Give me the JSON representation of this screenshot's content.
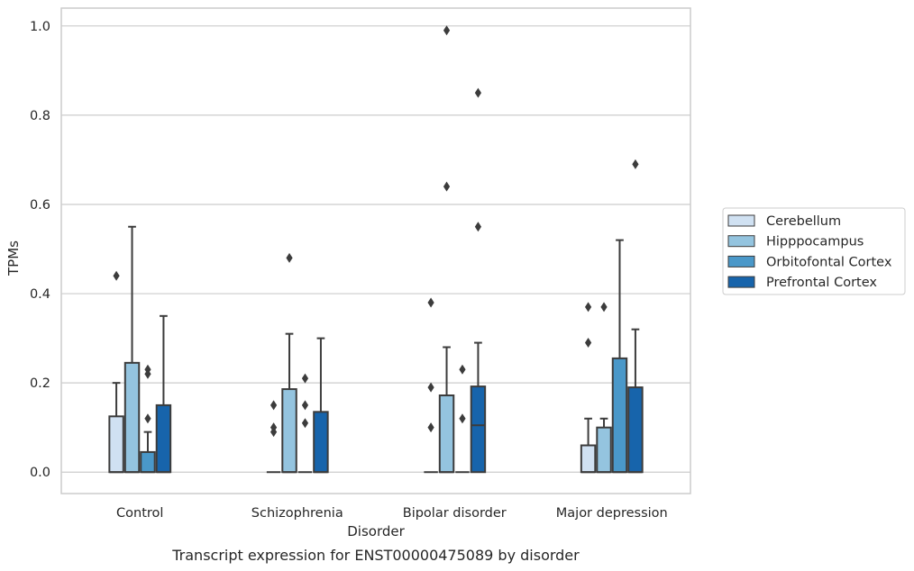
{
  "chart_data": {
    "type": "box",
    "xlabel": "Disorder",
    "ylabel": "TPMs",
    "caption": "Transcript expression for ENST00000475089 by disorder",
    "ylim": [
      -0.048,
      1.04
    ],
    "yticks": [
      "0.0",
      "0.2",
      "0.4",
      "0.6",
      "0.8",
      "1.0"
    ],
    "ytick_values": [
      0.0,
      0.2,
      0.4,
      0.6,
      0.8,
      1.0
    ],
    "grid": "horizontal",
    "legend_position": "right",
    "categories": [
      "Control",
      "Schizophrenia",
      "Bipolar disorder",
      "Major depression"
    ],
    "series": [
      {
        "name": "Cerebellum",
        "color": "#d0e1f2",
        "boxes": [
          {
            "q1": 0.0,
            "median": 0.0,
            "q3": 0.125,
            "whisker_low": 0.0,
            "whisker_high": 0.2,
            "outliers": [
              0.44
            ]
          },
          {
            "q1": 0.0,
            "median": 0.0,
            "q3": 0.0,
            "whisker_low": 0.0,
            "whisker_high": 0.0,
            "outliers": [
              0.15,
              0.1,
              0.09
            ]
          },
          {
            "q1": 0.0,
            "median": 0.0,
            "q3": 0.0,
            "whisker_low": 0.0,
            "whisker_high": 0.0,
            "outliers": [
              0.38,
              0.19,
              0.1
            ]
          },
          {
            "q1": 0.0,
            "median": 0.0,
            "q3": 0.06,
            "whisker_low": 0.0,
            "whisker_high": 0.12,
            "outliers": [
              0.37,
              0.29
            ]
          }
        ]
      },
      {
        "name": "Hipppocampus",
        "color": "#94c4df",
        "boxes": [
          {
            "q1": 0.0,
            "median": 0.0,
            "q3": 0.245,
            "whisker_low": 0.0,
            "whisker_high": 0.55,
            "outliers": []
          },
          {
            "q1": 0.0,
            "median": 0.0,
            "q3": 0.186,
            "whisker_low": 0.0,
            "whisker_high": 0.31,
            "outliers": [
              0.48
            ]
          },
          {
            "q1": 0.0,
            "median": 0.0,
            "q3": 0.172,
            "whisker_low": 0.0,
            "whisker_high": 0.28,
            "outliers": [
              0.99,
              0.64
            ]
          },
          {
            "q1": 0.0,
            "median": 0.0,
            "q3": 0.1,
            "whisker_low": 0.0,
            "whisker_high": 0.12,
            "outliers": [
              0.37
            ]
          }
        ]
      },
      {
        "name": "Orbitofontal Cortex",
        "color": "#4a98c9",
        "boxes": [
          {
            "q1": 0.0,
            "median": 0.0,
            "q3": 0.045,
            "whisker_low": 0.0,
            "whisker_high": 0.09,
            "outliers": [
              0.23,
              0.22,
              0.12
            ]
          },
          {
            "q1": 0.0,
            "median": 0.0,
            "q3": 0.0,
            "whisker_low": 0.0,
            "whisker_high": 0.0,
            "outliers": [
              0.21,
              0.15,
              0.11
            ]
          },
          {
            "q1": 0.0,
            "median": 0.0,
            "q3": 0.0,
            "whisker_low": 0.0,
            "whisker_high": 0.0,
            "outliers": [
              0.23,
              0.12
            ]
          },
          {
            "q1": 0.0,
            "median": 0.0,
            "q3": 0.255,
            "whisker_low": 0.0,
            "whisker_high": 0.52,
            "outliers": []
          }
        ]
      },
      {
        "name": "Prefrontal Cortex",
        "color": "#1764ab",
        "boxes": [
          {
            "q1": 0.0,
            "median": 0.0,
            "q3": 0.15,
            "whisker_low": 0.0,
            "whisker_high": 0.35,
            "outliers": []
          },
          {
            "q1": 0.0,
            "median": 0.0,
            "q3": 0.135,
            "whisker_low": 0.0,
            "whisker_high": 0.3,
            "outliers": []
          },
          {
            "q1": 0.0,
            "median": 0.105,
            "q3": 0.192,
            "whisker_low": 0.0,
            "whisker_high": 0.29,
            "outliers": [
              0.85,
              0.55
            ]
          },
          {
            "q1": 0.0,
            "median": 0.0,
            "q3": 0.19,
            "whisker_low": 0.0,
            "whisker_high": 0.32,
            "outliers": [
              0.69
            ]
          }
        ]
      }
    ]
  }
}
